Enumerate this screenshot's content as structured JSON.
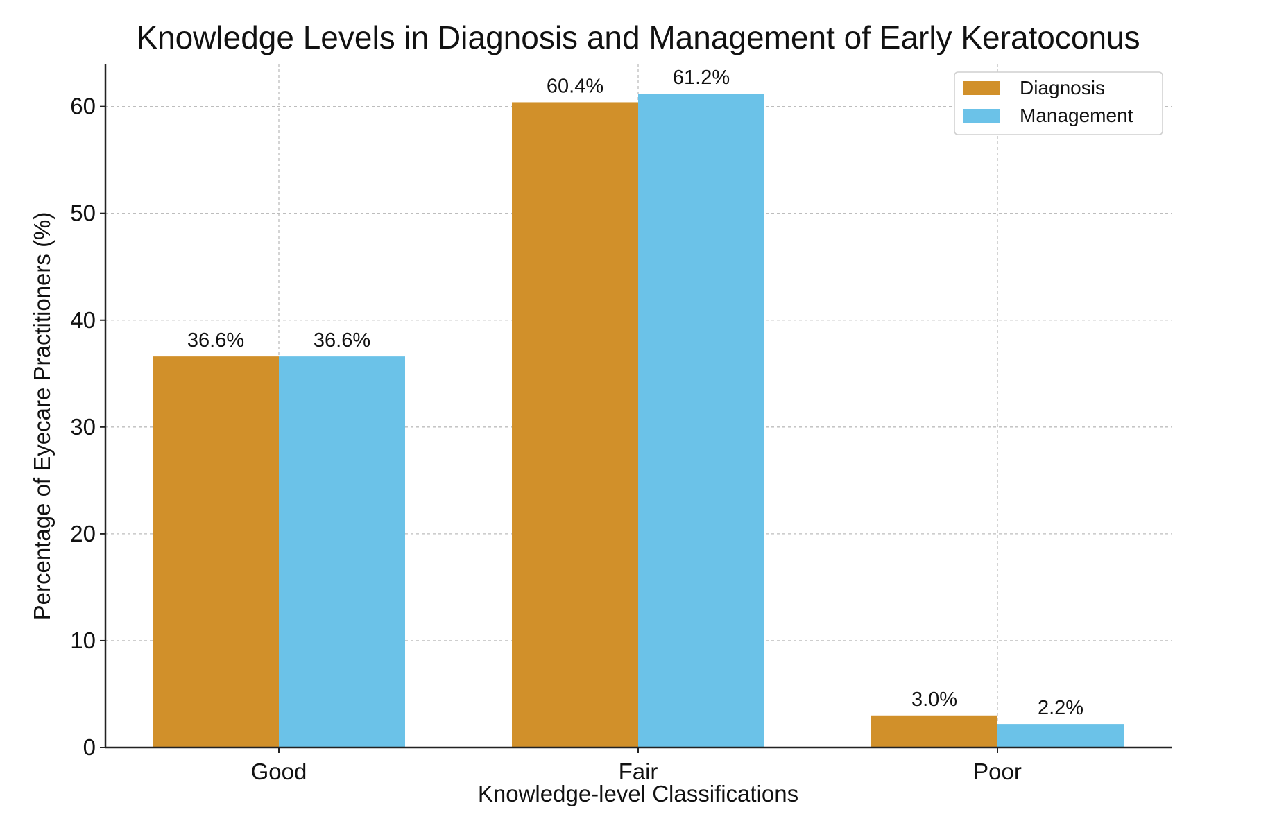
{
  "chart_data": {
    "type": "bar",
    "title": "Knowledge Levels in Diagnosis and Management of Early Keratoconus",
    "xlabel": "Knowledge-level Classifications",
    "ylabel": "Percentage of Eyecare Practitioners (%)",
    "categories": [
      "Good",
      "Fair",
      "Poor"
    ],
    "ylim": [
      0,
      64
    ],
    "yticks": [
      0,
      10,
      20,
      30,
      40,
      50,
      60
    ],
    "grid": true,
    "legend_position": "top-right",
    "series": [
      {
        "name": "Diagnosis",
        "color": "#D1902A",
        "values": [
          36.6,
          60.4,
          3.0
        ],
        "labels": [
          "36.6%",
          "60.4%",
          "3.0%"
        ]
      },
      {
        "name": "Management",
        "color": "#6BC2E8",
        "values": [
          36.6,
          61.2,
          2.2
        ],
        "labels": [
          "36.6%",
          "61.2%",
          "2.2%"
        ]
      }
    ]
  }
}
